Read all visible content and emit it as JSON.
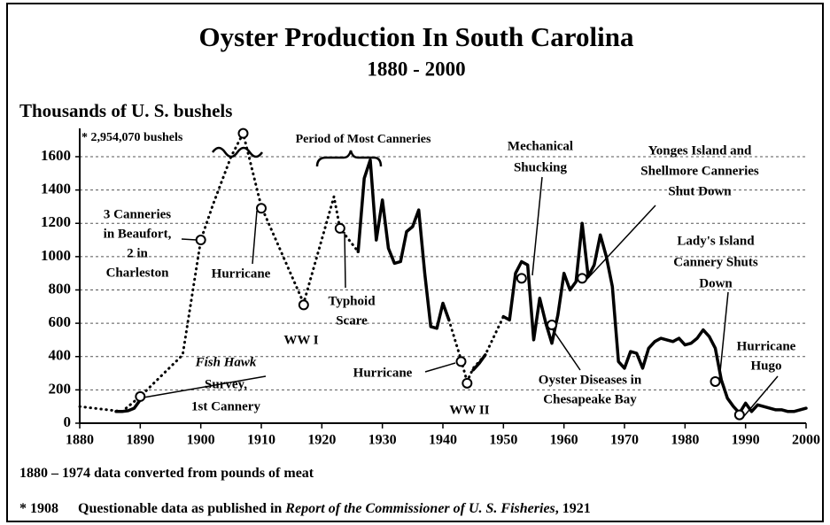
{
  "chart_data": {
    "type": "line",
    "title": "Oyster Production In South Carolina",
    "subtitle": "1880 - 2000",
    "y_label": "Thousands of U. S. bushels",
    "xlim": [
      1880,
      2000
    ],
    "xticks": [
      1880,
      1890,
      1900,
      1910,
      1920,
      1930,
      1940,
      1950,
      1960,
      1970,
      1980,
      1990,
      2000
    ],
    "ylim": [
      0,
      1770
    ],
    "yticks": [
      0,
      200,
      400,
      600,
      800,
      1000,
      1200,
      1400,
      1600
    ],
    "grid": true,
    "series": [
      {
        "style": "dotted",
        "color": "#000000",
        "x": [
          1880,
          1887,
          1890,
          1897,
          1900,
          1902,
          1905,
          1907,
          1910,
          1917,
          1922,
          1923,
          1926,
          1933,
          1941,
          1943,
          1944,
          1945,
          1947,
          1950
        ],
        "values": [
          100,
          70,
          160,
          410,
          1100,
          1310,
          1600,
          1740,
          1300,
          720,
          1360,
          1170,
          1030,
          null,
          620,
          380,
          250,
          330,
          410,
          640
        ]
      },
      {
        "style": "solid",
        "color": "#000000",
        "x": [
          1886,
          1887,
          1888,
          1889,
          1890,
          1908,
          1926,
          1927,
          1928,
          1929,
          1930,
          1931,
          1932,
          1933,
          1934,
          1935,
          1936,
          1937,
          1938,
          1939,
          1940,
          1941,
          1942,
          1945,
          1946,
          1947,
          1948,
          1950,
          1951,
          1952,
          1953,
          1954,
          1955,
          1956,
          1957,
          1958,
          1959,
          1960,
          1961,
          1962,
          1963,
          1964,
          1965,
          1966,
          1967,
          1968,
          1969,
          1970,
          1971,
          1972,
          1973,
          1974,
          1975,
          1976,
          1977,
          1978,
          1979,
          1980,
          1981,
          1982,
          1983,
          1984,
          1985,
          1986,
          1987,
          1988,
          1989,
          1990,
          1991,
          1992,
          1993,
          1994,
          1995,
          1996,
          1997,
          1998,
          1999,
          2000
        ],
        "values": [
          70,
          70,
          75,
          90,
          140,
          null,
          1030,
          1470,
          1580,
          1100,
          1340,
          1050,
          960,
          970,
          1150,
          1180,
          1280,
          900,
          580,
          570,
          720,
          620,
          null,
          320,
          360,
          410,
          null,
          640,
          620,
          900,
          970,
          950,
          500,
          750,
          600,
          480,
          650,
          900,
          800,
          850,
          1200,
          880,
          950,
          1130,
          1000,
          820,
          370,
          330,
          430,
          420,
          330,
          450,
          490,
          510,
          500,
          490,
          510,
          470,
          480,
          510,
          560,
          520,
          450,
          260,
          150,
          100,
          60,
          120,
          70,
          110,
          100,
          90,
          80,
          80,
          70,
          70,
          80,
          90
        ]
      },
      {
        "style": "markers",
        "color": "#000000",
        "x": [
          1890,
          1900,
          1907,
          1910,
          1917,
          1923,
          1943,
          1944,
          1953,
          1958,
          1963,
          1985,
          1989
        ],
        "values": [
          160,
          1100,
          1740,
          1290,
          710,
          1170,
          370,
          240,
          870,
          590,
          870,
          250,
          50
        ]
      }
    ],
    "annotations": [
      {
        "lines": [
          "* 2,954,070  bushels"
        ]
      },
      {
        "lines": [
          "Period of Most Canneries"
        ]
      },
      {
        "lines": [
          "3 Canneries",
          "in Beaufort,",
          "2 in",
          "Charleston"
        ]
      },
      {
        "lines": [
          "Hurricane"
        ]
      },
      {
        "lines": [
          "Typhoid",
          "Scare"
        ]
      },
      {
        "lines": [
          "WW I"
        ]
      },
      {
        "lines": [
          "Fish Hawk",
          "Survey,",
          "1st Cannery"
        ]
      },
      {
        "lines": [
          "Hurricane"
        ]
      },
      {
        "lines": [
          "WW II"
        ]
      },
      {
        "lines": [
          "Mechanical",
          "Shucking"
        ]
      },
      {
        "lines": [
          "Yonges Island and",
          "Shellmore Canneries",
          "Shut Down"
        ]
      },
      {
        "lines": [
          "Lady's Island",
          "Cannery Shuts",
          "Down"
        ]
      },
      {
        "lines": [
          "Oyster Diseases in",
          "Chesapeake Bay"
        ]
      },
      {
        "lines": [
          "Hurricane",
          "Hugo"
        ]
      }
    ],
    "notes": [
      [
        "1880 – 1974 data converted from pounds of meat"
      ],
      [
        "* 1908",
        "Questionable data as published in ",
        "Report of the Commissioner of U. S. Fisheries",
        ", 1921"
      ]
    ]
  }
}
